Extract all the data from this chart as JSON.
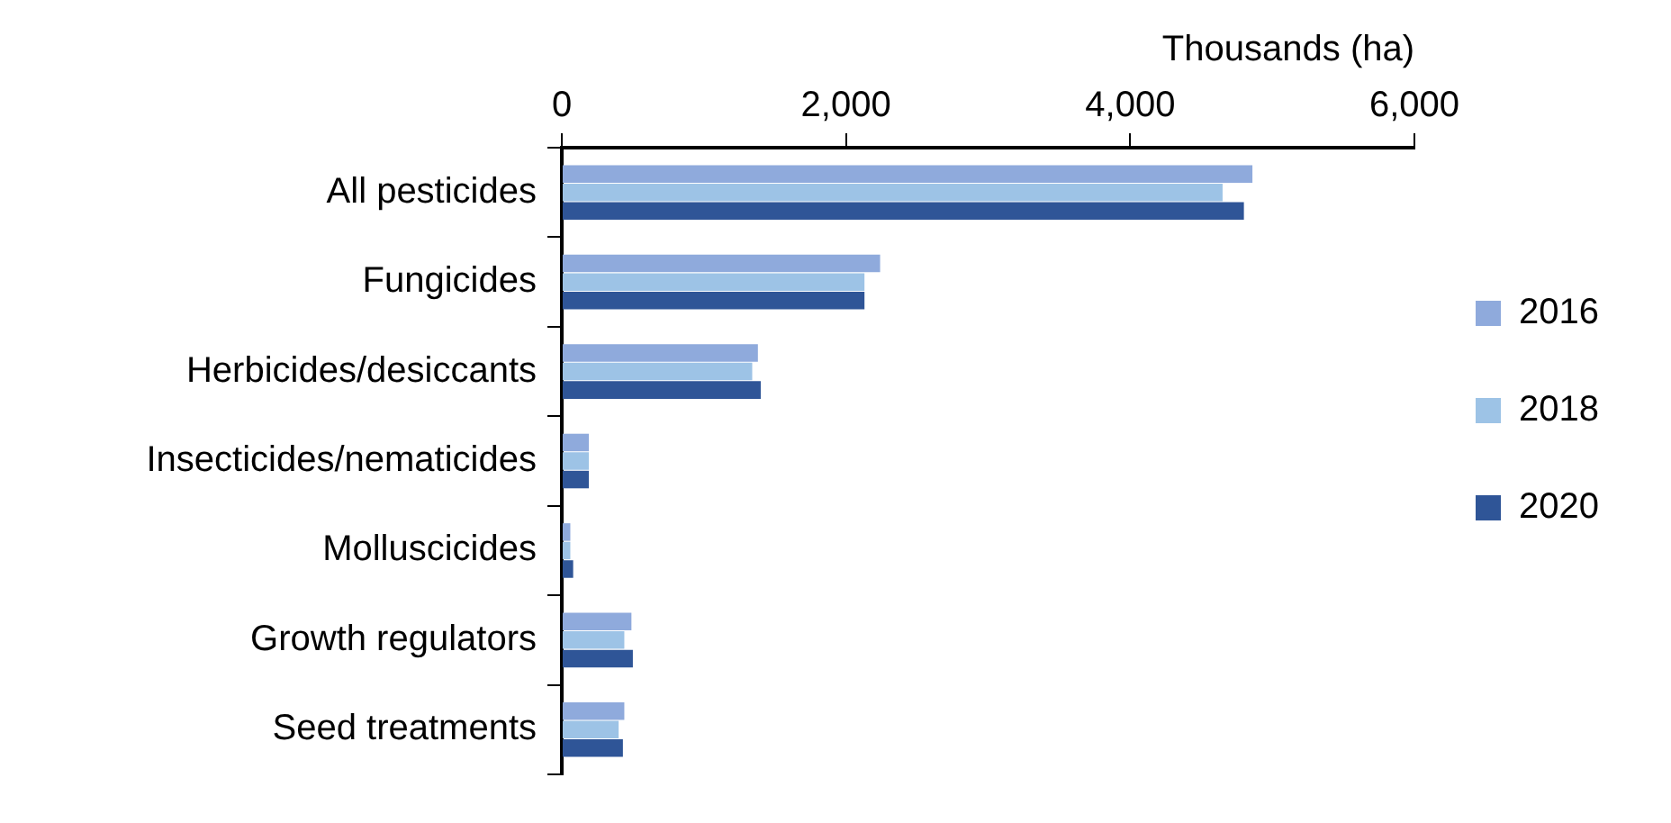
{
  "chart_data": {
    "type": "bar",
    "orientation": "horizontal",
    "xlabel": "Thousands (ha)",
    "categories": [
      "All pesticides",
      "Fungicides",
      "Herbicides/desiccants",
      "Insecticides/nematicides",
      "Molluscicides",
      "Growth regulators",
      "Seed treatments"
    ],
    "series": [
      {
        "name": "2016",
        "color": "#8faadc",
        "values": [
          4860,
          2240,
          1380,
          190,
          60,
          490,
          440
        ]
      },
      {
        "name": "2018",
        "color": "#9dc3e6",
        "values": [
          4650,
          2130,
          1340,
          190,
          60,
          440,
          400
        ]
      },
      {
        "name": "2020",
        "color": "#2f5597",
        "values": [
          4800,
          2130,
          1400,
          190,
          80,
          500,
          430
        ]
      }
    ],
    "xlim": [
      0,
      6000
    ],
    "xticks": [
      {
        "value": 0,
        "label": "0"
      },
      {
        "value": 2000,
        "label": "2,000"
      },
      {
        "value": 4000,
        "label": "4,000"
      },
      {
        "value": 6000,
        "label": "6,000"
      }
    ],
    "grid": false,
    "legend": "right"
  }
}
